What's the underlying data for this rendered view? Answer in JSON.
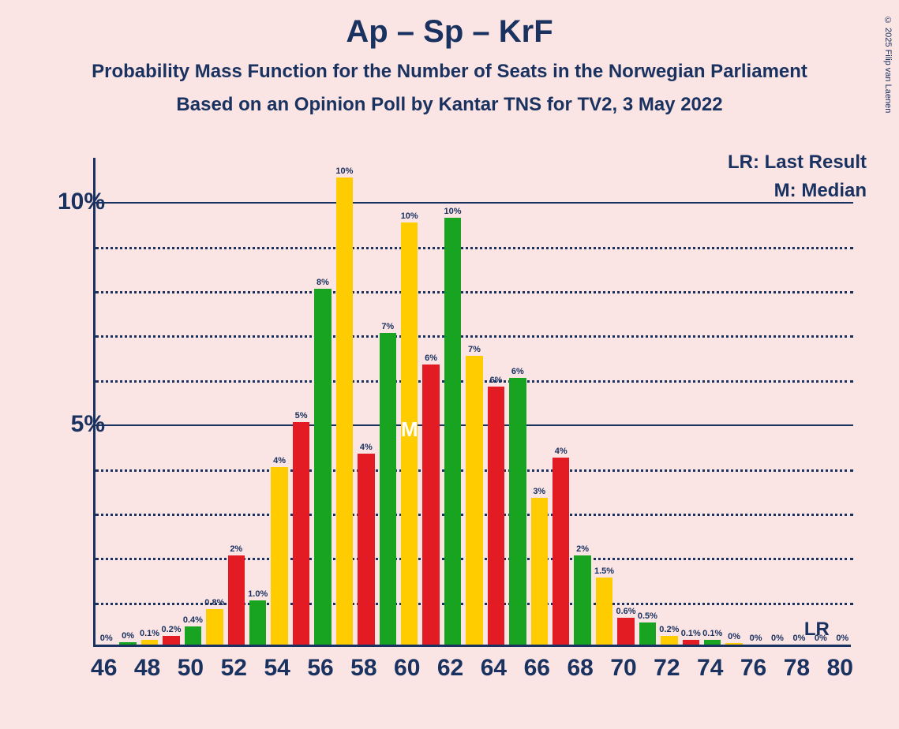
{
  "copyright": "© 2025 Filip van Laenen",
  "title": "Ap – Sp – KrF",
  "subtitle1": "Probability Mass Function for the Number of Seats in the Norwegian Parliament",
  "subtitle2": "Based on an Opinion Poll by Kantar TNS for TV2, 3 May 2022",
  "legend_lr": "LR: Last Result",
  "legend_m": "M: Median",
  "lr_label": "LR",
  "median_marker": "M",
  "chart": {
    "type": "bar",
    "background_color": "#fae4e4",
    "axis_color": "#1a3260",
    "grid_solid_color": "#1a3260",
    "grid_dot_color": "#1a3260",
    "ylim": [
      0,
      11
    ],
    "ytick_major": [
      5,
      10
    ],
    "ytick_minor": [
      1,
      2,
      3,
      4,
      6,
      7,
      8,
      9
    ],
    "yticklabels": {
      "5": "5%",
      "10": "10%"
    },
    "xticks": [
      46,
      48,
      50,
      52,
      54,
      56,
      58,
      60,
      62,
      64,
      66,
      68,
      70,
      72,
      74,
      76,
      78,
      80
    ],
    "x_start": 46,
    "x_end": 80,
    "bar_width_ratio": 0.78,
    "colors": {
      "red": "#e31b23",
      "green": "#18a321",
      "yellow": "#ffcc00"
    },
    "color_cycle": [
      "red",
      "green",
      "yellow"
    ],
    "bars": [
      {
        "x": 46,
        "value": 0,
        "label": "0%"
      },
      {
        "x": 47,
        "value": 0.05,
        "label": "0%"
      },
      {
        "x": 48,
        "value": 0.1,
        "label": "0.1%"
      },
      {
        "x": 49,
        "value": 0.2,
        "label": "0.2%"
      },
      {
        "x": 50,
        "value": 0.4,
        "label": "0.4%"
      },
      {
        "x": 51,
        "value": 0.8,
        "label": "0.8%"
      },
      {
        "x": 52,
        "value": 2,
        "label": "2%"
      },
      {
        "x": 53,
        "value": 1.0,
        "label": "1.0%"
      },
      {
        "x": 54,
        "value": 4,
        "label": "4%"
      },
      {
        "x": 55,
        "value": 5,
        "label": "5%"
      },
      {
        "x": 56,
        "value": 8,
        "label": "8%"
      },
      {
        "x": 57,
        "value": 10.5,
        "label": "10%"
      },
      {
        "x": 58,
        "value": 4.3,
        "label": "4%"
      },
      {
        "x": 59,
        "value": 7,
        "label": "7%"
      },
      {
        "x": 60,
        "value": 9.5,
        "label": "10%",
        "median": true
      },
      {
        "x": 61,
        "value": 6.3,
        "label": "6%"
      },
      {
        "x": 62,
        "value": 9.6,
        "label": "10%"
      },
      {
        "x": 63,
        "value": 6.5,
        "label": "7%"
      },
      {
        "x": 64,
        "value": 5.8,
        "label": "6%"
      },
      {
        "x": 65,
        "value": 6,
        "label": "6%"
      },
      {
        "x": 66,
        "value": 3.3,
        "label": "3%"
      },
      {
        "x": 67,
        "value": 4.2,
        "label": "4%"
      },
      {
        "x": 68,
        "value": 2,
        "label": "2%"
      },
      {
        "x": 69,
        "value": 1.5,
        "label": "1.5%"
      },
      {
        "x": 70,
        "value": 0.6,
        "label": "0.6%"
      },
      {
        "x": 71,
        "value": 0.5,
        "label": "0.5%"
      },
      {
        "x": 72,
        "value": 0.2,
        "label": "0.2%"
      },
      {
        "x": 73,
        "value": 0.1,
        "label": "0.1%"
      },
      {
        "x": 74,
        "value": 0.1,
        "label": "0.1%"
      },
      {
        "x": 75,
        "value": 0.03,
        "label": "0%"
      },
      {
        "x": 76,
        "value": 0,
        "label": "0%"
      },
      {
        "x": 77,
        "value": 0,
        "label": "0%"
      },
      {
        "x": 78,
        "value": 0,
        "label": "0%"
      },
      {
        "x": 79,
        "value": 0,
        "label": "0%"
      },
      {
        "x": 80,
        "value": 0,
        "label": "0%"
      }
    ],
    "lr_position": 79
  }
}
